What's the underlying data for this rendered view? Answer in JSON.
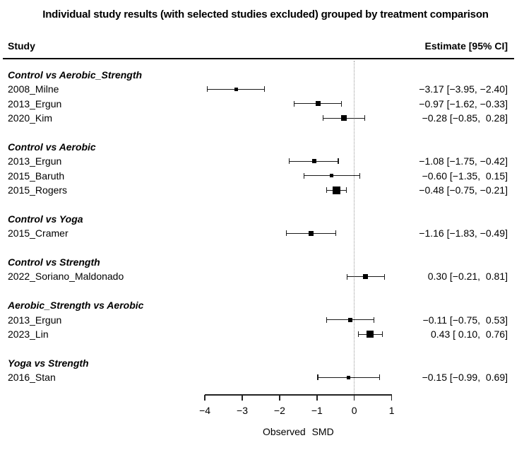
{
  "title": "Individual study results (with selected studies excluded) grouped by treatment comparison",
  "columns": {
    "study": "Study",
    "estimate": "Estimate [95% CI]"
  },
  "chart_data": {
    "type": "forest",
    "title": "Individual study results (with selected studies excluded) grouped by treatment comparison",
    "xlabel": "Observed SMD",
    "xlim": [
      -4,
      1
    ],
    "reference_line": 0,
    "grid": false,
    "x_ticks": [
      {
        "v": -4,
        "label": "−4"
      },
      {
        "v": -3,
        "label": "−3"
      },
      {
        "v": -2,
        "label": "−2"
      },
      {
        "v": -1,
        "label": "−1"
      },
      {
        "v": 0,
        "label": "0"
      },
      {
        "v": 1,
        "label": "1"
      }
    ],
    "groups": [
      {
        "label": "Control vs Aerobic_Strength",
        "studies": [
          {
            "label": "2008_Milne",
            "estimate": -3.17,
            "ci_low": -3.95,
            "ci_high": -2.4,
            "estimate_text": "−3.17 [−3.95, −2.40]",
            "marker_size_px": 5
          },
          {
            "label": "2013_Ergun",
            "estimate": -0.97,
            "ci_low": -1.62,
            "ci_high": -0.33,
            "estimate_text": "−0.97 [−1.62, −0.33]",
            "marker_size_px": 7
          },
          {
            "label": "2020_Kim",
            "estimate": -0.28,
            "ci_low": -0.85,
            "ci_high": 0.28,
            "estimate_text": "−0.28 [−0.85,  0.28]",
            "marker_size_px": 8
          }
        ]
      },
      {
        "label": "Control vs Aerobic",
        "studies": [
          {
            "label": "2013_Ergun",
            "estimate": -1.08,
            "ci_low": -1.75,
            "ci_high": -0.42,
            "estimate_text": "−1.08 [−1.75, −0.42]",
            "marker_size_px": 6
          },
          {
            "label": "2015_Baruth",
            "estimate": -0.6,
            "ci_low": -1.35,
            "ci_high": 0.15,
            "estimate_text": "−0.60 [−1.35,  0.15]",
            "marker_size_px": 5
          },
          {
            "label": "2015_Rogers",
            "estimate": -0.48,
            "ci_low": -0.75,
            "ci_high": -0.21,
            "estimate_text": "−0.48 [−0.75, −0.21]",
            "marker_size_px": 11
          }
        ]
      },
      {
        "label": "Control vs Yoga",
        "studies": [
          {
            "label": "2015_Cramer",
            "estimate": -1.16,
            "ci_low": -1.83,
            "ci_high": -0.49,
            "estimate_text": "−1.16 [−1.83, −0.49]",
            "marker_size_px": 7
          }
        ]
      },
      {
        "label": "Control vs Strength",
        "studies": [
          {
            "label": "2022_Soriano_Maldonado",
            "estimate": 0.3,
            "ci_low": -0.21,
            "ci_high": 0.81,
            "estimate_text": "0.30 [−0.21,  0.81]",
            "marker_size_px": 7
          }
        ]
      },
      {
        "label": "Aerobic_Strength vs Aerobic",
        "studies": [
          {
            "label": "2013_Ergun",
            "estimate": -0.11,
            "ci_low": -0.75,
            "ci_high": 0.53,
            "estimate_text": "−0.11 [−0.75,  0.53]",
            "marker_size_px": 6
          },
          {
            "label": "2023_Lin",
            "estimate": 0.43,
            "ci_low": 0.1,
            "ci_high": 0.76,
            "estimate_text": "0.43 [ 0.10,  0.76]",
            "marker_size_px": 10
          }
        ]
      },
      {
        "label": "Yoga vs Strength",
        "studies": [
          {
            "label": "2016_Stan",
            "estimate": -0.15,
            "ci_low": -0.99,
            "ci_high": 0.69,
            "estimate_text": "−0.15 [−0.99,  0.69]",
            "marker_size_px": 5
          }
        ]
      }
    ],
    "colors": {
      "marker": "#000000",
      "ci_line": "#1a1a1a",
      "reference_line": "#999999",
      "text": "#000000"
    }
  }
}
